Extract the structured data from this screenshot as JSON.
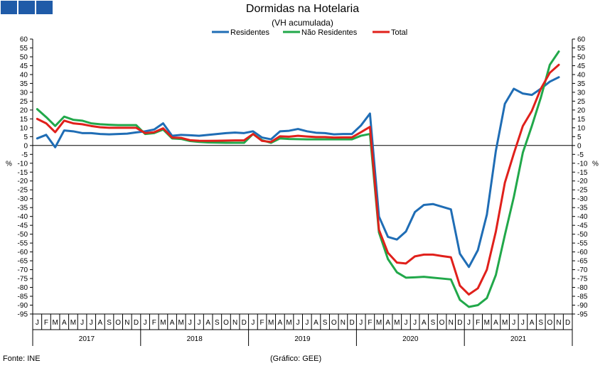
{
  "header": {
    "title": "Dormidas na Hotelaria",
    "subtitle": "(VH acumulada)"
  },
  "footer": {
    "source": "Fonte: INE",
    "credit": "(Gráfico: GEE)"
  },
  "colors": {
    "logo": "#1f5ba8",
    "Residentes": "#1f6db5",
    "Não Residentes": "#21a84a",
    "Total": "#e0201b"
  },
  "chart_data": {
    "type": "line",
    "title": "Dormidas na Hotelaria",
    "subtitle": "(VH acumulada)",
    "ylabel": "%",
    "ylim": [
      -95,
      60
    ],
    "ytick_step": 5,
    "grid": false,
    "legend": "top-center",
    "years": [
      "2017",
      "2018",
      "2019",
      "2020",
      "2021"
    ],
    "month_letters": [
      "J",
      "F",
      "M",
      "A",
      "M",
      "J",
      "J",
      "A",
      "S",
      "O",
      "N",
      "D"
    ],
    "x": [
      "2017-01",
      "2017-02",
      "2017-03",
      "2017-04",
      "2017-05",
      "2017-06",
      "2017-07",
      "2017-08",
      "2017-09",
      "2017-10",
      "2017-11",
      "2017-12",
      "2018-01",
      "2018-02",
      "2018-03",
      "2018-04",
      "2018-05",
      "2018-06",
      "2018-07",
      "2018-08",
      "2018-09",
      "2018-10",
      "2018-11",
      "2018-12",
      "2019-01",
      "2019-02",
      "2019-03",
      "2019-04",
      "2019-05",
      "2019-06",
      "2019-07",
      "2019-08",
      "2019-09",
      "2019-10",
      "2019-11",
      "2019-12",
      "2020-01",
      "2020-02",
      "2020-03",
      "2020-04",
      "2020-05",
      "2020-06",
      "2020-07",
      "2020-08",
      "2020-09",
      "2020-10",
      "2020-11",
      "2020-12",
      "2021-01",
      "2021-02",
      "2021-03",
      "2021-04",
      "2021-05",
      "2021-06",
      "2021-07",
      "2021-08",
      "2021-09",
      "2021-10",
      "2021-11",
      "2021-12"
    ],
    "series": [
      {
        "name": "Residentes",
        "values": [
          4,
          6,
          -1,
          8.5,
          8,
          7,
          7,
          6.5,
          6.3,
          6.5,
          6.7,
          7.4,
          8,
          9,
          12.5,
          5.5,
          6,
          5.8,
          5.5,
          6,
          6.5,
          7,
          7.3,
          7,
          8,
          4.5,
          3.5,
          8,
          8.3,
          9.3,
          8,
          7.2,
          7,
          6.3,
          6.5,
          6.5,
          11.3,
          18,
          -40,
          -51.5,
          -53,
          -48.5,
          -37.5,
          -33.5,
          -33,
          -34.5,
          -36,
          -61,
          -68.5,
          -59,
          -39,
          -3,
          23.5,
          32,
          29.3,
          28.5,
          32,
          36,
          38.5,
          null
        ]
      },
      {
        "name": "Não Residentes",
        "values": [
          20.5,
          16,
          11,
          16.3,
          14.5,
          14,
          12.5,
          12,
          11.7,
          11.5,
          11.5,
          11.5,
          6.5,
          7,
          9,
          4,
          3.7,
          2.5,
          2,
          1.7,
          1.6,
          1.5,
          1.5,
          1.5,
          6.5,
          3,
          1.5,
          4,
          3.7,
          3.6,
          3.5,
          3.5,
          3.5,
          3.5,
          3.5,
          3.5,
          5.5,
          6.5,
          -49,
          -64,
          -71.5,
          -74.5,
          -74.3,
          -74,
          -74.5,
          -75,
          -75.5,
          -87,
          -91,
          -90,
          -86,
          -73,
          -50.5,
          -29,
          -4,
          11,
          27,
          45.5,
          53,
          null
        ]
      },
      {
        "name": "Total",
        "values": [
          15,
          12.5,
          7.5,
          14,
          12.5,
          12,
          11,
          10.3,
          10,
          10,
          10,
          10,
          7,
          7.5,
          9.7,
          4.5,
          4.3,
          3,
          2.7,
          2.6,
          2.7,
          2.8,
          2.9,
          2.9,
          6.5,
          2.6,
          2,
          5.2,
          5,
          5.5,
          5.1,
          4.8,
          4.8,
          4.5,
          4.6,
          4.6,
          7.5,
          10.5,
          -47.5,
          -60.5,
          -66,
          -66.5,
          -62.5,
          -61.5,
          -61.5,
          -62.3,
          -63,
          -79,
          -84,
          -80.5,
          -70,
          -48.5,
          -21,
          -4.5,
          11,
          19.5,
          32,
          41,
          45.5,
          null
        ]
      }
    ]
  }
}
